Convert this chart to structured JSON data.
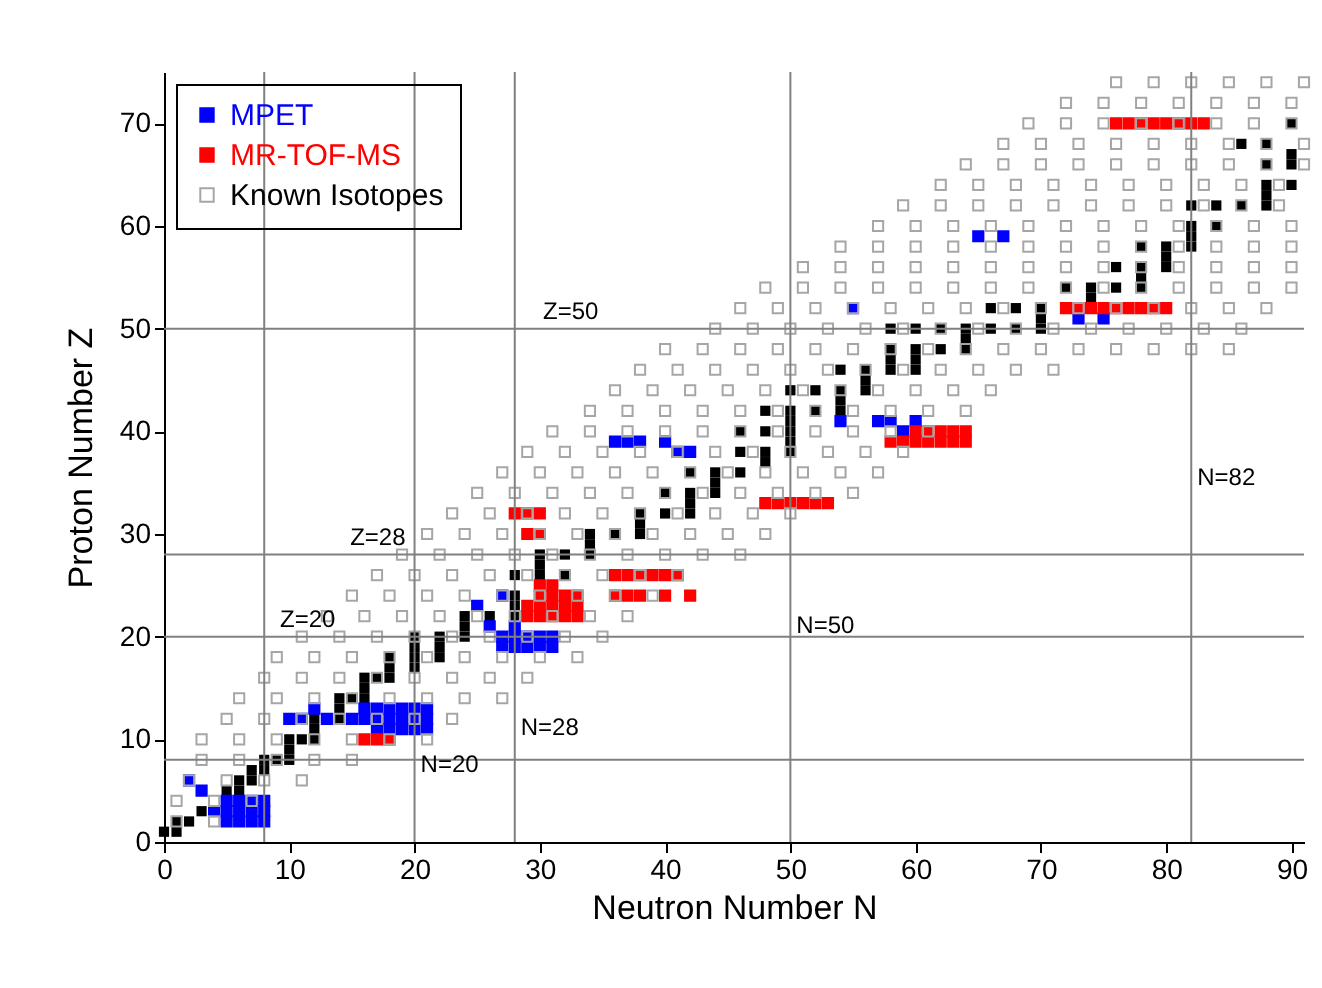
{
  "chart_data": {
    "type": "scatter",
    "xlabel": "Neutron Number N",
    "ylabel": "Proton Number Z",
    "xlim": [
      0,
      91
    ],
    "ylim": [
      0,
      75
    ],
    "xticks": [
      0,
      10,
      20,
      30,
      40,
      50,
      60,
      70,
      80,
      90
    ],
    "yticks": [
      0,
      10,
      20,
      30,
      40,
      50,
      60,
      70
    ],
    "grid": false,
    "legend": "top left",
    "marker": "square",
    "series": [
      {
        "name": "MPET",
        "color": "#0000ff",
        "x": [
          5,
          6,
          7,
          8,
          4,
          5,
          6,
          7,
          8,
          5,
          6,
          7,
          8,
          3,
          2,
          17,
          18,
          19,
          20,
          21,
          10,
          11,
          13,
          15,
          16,
          17,
          18,
          19,
          20,
          21,
          12,
          16,
          17,
          18,
          19,
          20,
          21,
          27,
          28,
          29,
          30,
          31,
          27,
          28,
          29,
          30,
          31,
          26,
          28,
          25,
          27,
          41,
          42,
          36,
          37,
          38,
          40,
          59,
          54,
          57,
          58,
          60,
          73,
          75,
          55,
          65,
          67
        ],
        "values": [
          2,
          2,
          2,
          2,
          3,
          3,
          3,
          3,
          3,
          4,
          4,
          4,
          4,
          5,
          6,
          11,
          11,
          11,
          11,
          11,
          12,
          12,
          12,
          12,
          12,
          12,
          12,
          12,
          12,
          12,
          13,
          13,
          13,
          13,
          13,
          13,
          13,
          19,
          19,
          19,
          19,
          19,
          20,
          20,
          20,
          20,
          20,
          21,
          21,
          23,
          24,
          38,
          38,
          39,
          39,
          39,
          39,
          40,
          41,
          41,
          41,
          41,
          51,
          51,
          52,
          59,
          59
        ]
      },
      {
        "name": "MR-TOF-MS",
        "color": "#ff0000",
        "x": [
          16,
          17,
          18,
          29,
          30,
          31,
          32,
          33,
          29,
          30,
          31,
          32,
          33,
          30,
          31,
          32,
          33,
          36,
          37,
          38,
          40,
          42,
          30,
          31,
          36,
          37,
          38,
          39,
          40,
          41,
          29,
          30,
          28,
          29,
          30,
          48,
          49,
          50,
          51,
          52,
          53,
          58,
          59,
          60,
          61,
          62,
          63,
          64,
          60,
          61,
          62,
          63,
          64,
          72,
          73,
          74,
          75,
          76,
          77,
          78,
          79,
          80,
          76,
          77,
          78,
          79,
          80,
          81,
          82,
          83
        ],
        "values": [
          10,
          10,
          10,
          22,
          22,
          22,
          22,
          22,
          23,
          23,
          23,
          23,
          23,
          24,
          24,
          24,
          24,
          24,
          24,
          24,
          24,
          24,
          25,
          25,
          26,
          26,
          26,
          26,
          26,
          26,
          30,
          30,
          32,
          32,
          32,
          33,
          33,
          33,
          33,
          33,
          33,
          39,
          39,
          39,
          39,
          39,
          39,
          39,
          40,
          40,
          40,
          40,
          40,
          52,
          52,
          52,
          52,
          52,
          52,
          52,
          52,
          52,
          70,
          70,
          70,
          70,
          70,
          70,
          70,
          70
        ]
      },
      {
        "name": "Known Isotopes",
        "color": "#a6a6a6",
        "x": [
          1,
          4,
          1,
          4,
          7,
          2,
          5,
          8,
          11,
          3,
          6,
          9,
          12,
          15,
          3,
          6,
          9,
          12,
          15,
          18,
          21,
          5,
          8,
          11,
          14,
          17,
          20,
          23,
          6,
          9,
          12,
          15,
          18,
          21,
          24,
          27,
          8,
          11,
          14,
          17,
          20,
          23,
          26,
          29,
          9,
          12,
          15,
          18,
          21,
          24,
          27,
          30,
          33,
          11,
          14,
          17,
          20,
          23,
          26,
          29,
          32,
          35,
          13,
          16,
          19,
          22,
          25,
          28,
          31,
          34,
          37,
          15,
          18,
          21,
          24,
          27,
          30,
          33,
          36,
          39,
          17,
          20,
          23,
          26,
          29,
          32,
          35,
          38,
          41,
          19,
          22,
          25,
          28,
          31,
          34,
          37,
          40,
          43,
          46,
          21,
          24,
          27,
          30,
          33,
          36,
          39,
          42,
          45,
          48,
          23,
          26,
          29,
          32,
          35,
          38,
          41,
          44,
          47,
          50,
          25,
          28,
          31,
          34,
          37,
          40,
          43,
          46,
          49,
          52,
          55,
          27,
          30,
          33,
          36,
          39,
          42,
          45,
          48,
          51,
          54,
          57,
          29,
          32,
          35,
          38,
          41,
          44,
          47,
          50,
          53,
          56,
          59,
          31,
          34,
          37,
          40,
          43,
          46,
          49,
          52,
          55,
          58,
          61,
          34,
          37,
          40,
          43,
          46,
          49,
          52,
          55,
          58,
          61,
          64,
          36,
          39,
          42,
          45,
          48,
          51,
          54,
          57,
          60,
          63,
          66,
          38,
          41,
          44,
          47,
          50,
          53,
          56,
          59,
          62,
          65,
          68,
          71,
          40,
          43,
          46,
          49,
          52,
          55,
          58,
          61,
          64,
          67,
          70,
          73,
          76,
          79,
          82,
          85,
          44,
          47,
          50,
          53,
          56,
          59,
          62,
          65,
          68,
          71,
          74,
          77,
          80,
          83,
          86,
          46,
          49,
          52,
          55,
          58,
          61,
          64,
          67,
          70,
          73,
          76,
          79,
          82,
          85,
          88,
          48,
          51,
          54,
          57,
          60,
          63,
          66,
          69,
          72,
          75,
          78,
          81,
          84,
          87,
          90,
          51,
          54,
          57,
          60,
          63,
          66,
          69,
          72,
          75,
          78,
          81,
          84,
          87,
          90,
          54,
          57,
          60,
          63,
          66,
          69,
          72,
          75,
          78,
          81,
          84,
          87,
          90,
          57,
          60,
          63,
          66,
          69,
          72,
          75,
          78,
          81,
          84,
          87,
          90,
          59,
          62,
          65,
          68,
          71,
          74,
          77,
          80,
          83,
          86,
          89,
          62,
          65,
          68,
          71,
          74,
          77,
          80,
          83,
          86,
          89,
          64,
          67,
          70,
          73,
          76,
          79,
          82,
          85,
          88,
          91,
          67,
          70,
          73,
          76,
          79,
          82,
          85,
          88,
          91,
          69,
          72,
          75,
          78,
          81,
          84,
          87,
          90,
          72,
          75,
          78,
          81,
          84,
          87,
          90,
          76,
          79,
          82,
          85,
          88,
          91
        ],
        "values": [
          2,
          2,
          4,
          4,
          4,
          6,
          6,
          6,
          6,
          8,
          8,
          8,
          8,
          8,
          10,
          10,
          10,
          10,
          10,
          10,
          10,
          12,
          12,
          12,
          12,
          12,
          12,
          12,
          14,
          14,
          14,
          14,
          14,
          14,
          14,
          14,
          16,
          16,
          16,
          16,
          16,
          16,
          16,
          16,
          18,
          18,
          18,
          18,
          18,
          18,
          18,
          18,
          18,
          20,
          20,
          20,
          20,
          20,
          20,
          20,
          20,
          20,
          22,
          22,
          22,
          22,
          22,
          22,
          22,
          22,
          22,
          24,
          24,
          24,
          24,
          24,
          24,
          24,
          24,
          24,
          26,
          26,
          26,
          26,
          26,
          26,
          26,
          26,
          26,
          28,
          28,
          28,
          28,
          28,
          28,
          28,
          28,
          28,
          28,
          30,
          30,
          30,
          30,
          30,
          30,
          30,
          30,
          30,
          30,
          32,
          32,
          32,
          32,
          32,
          32,
          32,
          32,
          32,
          32,
          34,
          34,
          34,
          34,
          34,
          34,
          34,
          34,
          34,
          34,
          34,
          36,
          36,
          36,
          36,
          36,
          36,
          36,
          36,
          36,
          36,
          36,
          38,
          38,
          38,
          38,
          38,
          38,
          38,
          38,
          38,
          38,
          38,
          40,
          40,
          40,
          40,
          40,
          40,
          40,
          40,
          40,
          40,
          40,
          42,
          42,
          42,
          42,
          42,
          42,
          42,
          42,
          42,
          42,
          42,
          44,
          44,
          44,
          44,
          44,
          44,
          44,
          44,
          44,
          44,
          44,
          46,
          46,
          46,
          46,
          46,
          46,
          46,
          46,
          46,
          46,
          46,
          46,
          48,
          48,
          48,
          48,
          48,
          48,
          48,
          48,
          48,
          48,
          48,
          48,
          48,
          48,
          48,
          48,
          50,
          50,
          50,
          50,
          50,
          50,
          50,
          50,
          50,
          50,
          50,
          50,
          50,
          50,
          50,
          52,
          52,
          52,
          52,
          52,
          52,
          52,
          52,
          52,
          52,
          52,
          52,
          52,
          52,
          52,
          54,
          54,
          54,
          54,
          54,
          54,
          54,
          54,
          54,
          54,
          54,
          54,
          54,
          54,
          54,
          56,
          56,
          56,
          56,
          56,
          56,
          56,
          56,
          56,
          56,
          56,
          56,
          56,
          56,
          58,
          58,
          58,
          58,
          58,
          58,
          58,
          58,
          58,
          58,
          58,
          58,
          58,
          60,
          60,
          60,
          60,
          60,
          60,
          60,
          60,
          60,
          60,
          60,
          60,
          62,
          62,
          62,
          62,
          62,
          62,
          62,
          62,
          62,
          62,
          62,
          64,
          64,
          64,
          64,
          64,
          64,
          64,
          64,
          64,
          64,
          66,
          66,
          66,
          66,
          66,
          66,
          66,
          66,
          66,
          66,
          68,
          68,
          68,
          68,
          68,
          68,
          68,
          68,
          68,
          70,
          70,
          70,
          70,
          70,
          70,
          70,
          70,
          72,
          72,
          72,
          72,
          72,
          72,
          72,
          74,
          74,
          74,
          74,
          74,
          74
        ]
      },
      {
        "color": "#000000",
        "x": [
          0,
          1,
          1,
          2,
          3,
          5,
          6,
          6,
          7,
          7,
          8,
          8,
          9,
          10,
          10,
          10,
          11,
          12,
          12,
          12,
          14,
          14,
          14,
          15,
          16,
          16,
          16,
          17,
          18,
          18,
          20,
          18,
          20,
          22,
          20,
          22,
          20,
          22,
          24,
          24,
          24,
          26,
          28,
          28,
          28,
          28,
          30,
          32,
          30,
          30,
          32,
          34,
          34,
          34,
          36,
          38,
          38,
          38,
          40,
          42,
          42,
          40,
          42,
          44,
          44,
          42,
          44,
          46,
          48,
          46,
          48,
          50,
          50,
          46,
          48,
          50,
          50,
          48,
          50,
          52,
          54,
          54,
          50,
          52,
          54,
          56,
          56,
          54,
          56,
          58,
          60,
          58,
          60,
          58,
          60,
          62,
          64,
          64,
          58,
          60,
          62,
          64,
          66,
          68,
          70,
          70,
          66,
          68,
          70,
          74,
          72,
          74,
          76,
          78,
          78,
          76,
          78,
          80,
          80,
          78,
          80,
          82,
          82,
          82,
          84,
          82,
          84,
          86,
          88,
          88,
          88,
          90,
          88,
          90,
          90,
          86,
          88,
          90
        ],
        "values": [
          1,
          1,
          2,
          2,
          3,
          5,
          5,
          6,
          6,
          7,
          7,
          8,
          8,
          8,
          9,
          10,
          10,
          10,
          11,
          12,
          12,
          13,
          14,
          14,
          14,
          15,
          16,
          16,
          16,
          17,
          17,
          18,
          18,
          18,
          19,
          19,
          20,
          20,
          20,
          21,
          22,
          22,
          22,
          23,
          24,
          26,
          26,
          26,
          27,
          28,
          28,
          28,
          29,
          30,
          30,
          30,
          31,
          32,
          32,
          32,
          33,
          34,
          34,
          34,
          35,
          36,
          36,
          36,
          37,
          38,
          38,
          38,
          39,
          40,
          40,
          40,
          41,
          42,
          42,
          42,
          42,
          43,
          44,
          44,
          44,
          44,
          45,
          46,
          46,
          46,
          46,
          47,
          47,
          48,
          48,
          48,
          48,
          49,
          50,
          50,
          50,
          50,
          50,
          50,
          50,
          51,
          52,
          52,
          52,
          53,
          54,
          54,
          54,
          54,
          55,
          56,
          56,
          56,
          57,
          58,
          58,
          58,
          59,
          60,
          60,
          62,
          62,
          62,
          62,
          63,
          64,
          64,
          66,
          66,
          67,
          68,
          68,
          70
        ]
      }
    ],
    "ref_lines": [
      {
        "axis": "y",
        "value": 8,
        "label": null
      },
      {
        "axis": "y",
        "value": 20,
        "label": "Z=20"
      },
      {
        "axis": "y",
        "value": 28,
        "label": "Z=28"
      },
      {
        "axis": "y",
        "value": 50,
        "label": "Z=50"
      },
      {
        "axis": "x",
        "value": 8,
        "label": null
      },
      {
        "axis": "x",
        "value": 20,
        "label": "N=20"
      },
      {
        "axis": "x",
        "value": 28,
        "label": "N=28"
      },
      {
        "axis": "x",
        "value": 50,
        "label": "N=50"
      },
      {
        "axis": "x",
        "value": 82,
        "label": "N=82"
      }
    ]
  }
}
